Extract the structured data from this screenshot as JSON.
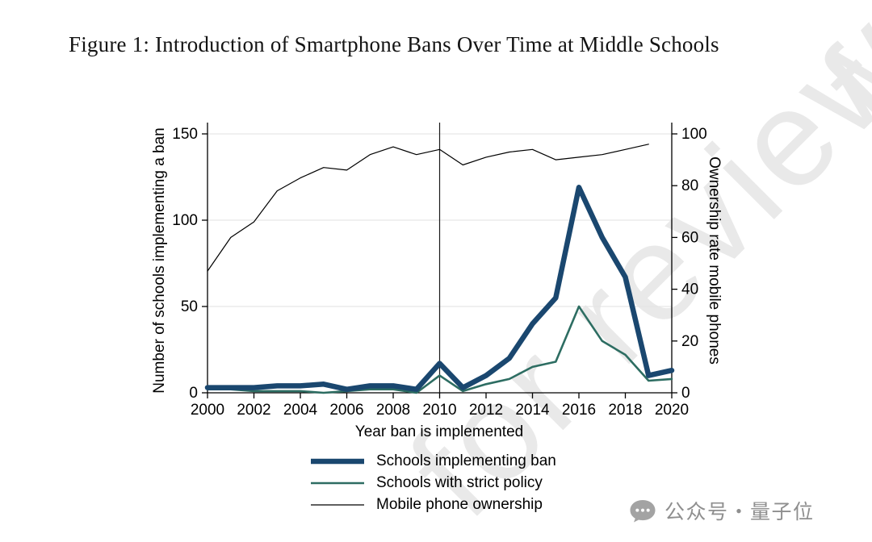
{
  "figure": {
    "title": "Figure 1: Introduction of Smartphone Bans Over Time at Middle Schools"
  },
  "watermark": {
    "text": "for review"
  },
  "brand": {
    "text": "公众号・量子位",
    "icon": "chat-bubble-icon",
    "color": "#8f8f8f"
  },
  "chart_data": {
    "type": "line",
    "x": [
      2000,
      2001,
      2002,
      2003,
      2004,
      2005,
      2006,
      2007,
      2008,
      2009,
      2010,
      2011,
      2012,
      2013,
      2014,
      2015,
      2016,
      2017,
      2018,
      2019,
      2020
    ],
    "x_ticks": [
      2000,
      2002,
      2004,
      2006,
      2008,
      2010,
      2012,
      2014,
      2016,
      2018,
      2020
    ],
    "xlabel": "Year ban is implemented",
    "ylabel_left": "Number of schools implementing a ban",
    "ylabel_right": "Ownership rate mobile phones",
    "ylim_left": [
      0,
      150
    ],
    "yticks_left": [
      0,
      50,
      100,
      150
    ],
    "ylim_right": [
      0,
      100
    ],
    "yticks_right": [
      0,
      20,
      40,
      60,
      80,
      100
    ],
    "reference_line_x": 2010,
    "grid": true,
    "legend_position": "bottom",
    "series": [
      {
        "name": "Schools implementing ban",
        "axis": "left",
        "color": "#1a476f",
        "values": [
          3,
          3,
          3,
          4,
          4,
          5,
          2,
          4,
          4,
          2,
          17,
          3,
          10,
          20,
          40,
          55,
          119,
          90,
          67,
          10,
          13
        ]
      },
      {
        "name": "Schools with strict policy",
        "axis": "left",
        "color": "#2d6d62",
        "values": [
          2,
          2,
          1,
          1,
          1,
          0,
          1,
          2,
          2,
          0,
          10,
          1,
          5,
          8,
          15,
          18,
          50,
          30,
          22,
          7,
          8
        ]
      },
      {
        "name": "Mobile phone ownership",
        "axis": "right",
        "color": "#000000",
        "values": [
          47,
          60,
          66,
          78,
          83,
          87,
          86,
          92,
          95,
          92,
          94,
          88,
          91,
          93,
          94,
          90,
          91,
          92,
          94,
          96,
          null
        ]
      }
    ]
  }
}
